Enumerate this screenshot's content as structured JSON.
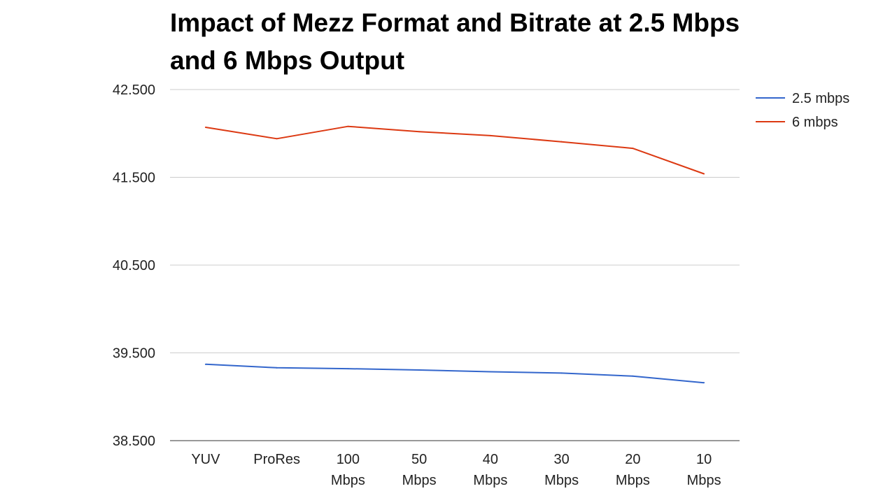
{
  "chart_data": {
    "type": "line",
    "title": "Impact of Mezz Format and Bitrate at 2.5 Mbps and 6 Mbps Output",
    "xlabel": "",
    "ylabel": "",
    "categories": [
      [
        "YUV"
      ],
      [
        "ProRes"
      ],
      [
        "100",
        "Mbps"
      ],
      [
        "50",
        "Mbps"
      ],
      [
        "40",
        "Mbps"
      ],
      [
        "30",
        "Mbps"
      ],
      [
        "20",
        "Mbps"
      ],
      [
        "10",
        "Mbps"
      ]
    ],
    "ylim": [
      38.5,
      42.5
    ],
    "yticks": [
      38.5,
      39.5,
      40.5,
      41.5,
      42.5
    ],
    "ytick_labels": [
      "38.500",
      "39.500",
      "40.500",
      "41.500",
      "42.500"
    ],
    "grid": true,
    "legend_position": "right",
    "series": [
      {
        "name": "2.5 mbps",
        "color": "#3366cc",
        "values": [
          39.37,
          39.33,
          39.32,
          39.305,
          39.285,
          39.27,
          39.235,
          39.16
        ]
      },
      {
        "name": "6 mbps",
        "color": "#dc3912",
        "values": [
          42.07,
          41.94,
          42.08,
          42.02,
          41.975,
          41.905,
          41.83,
          41.54
        ]
      }
    ]
  }
}
